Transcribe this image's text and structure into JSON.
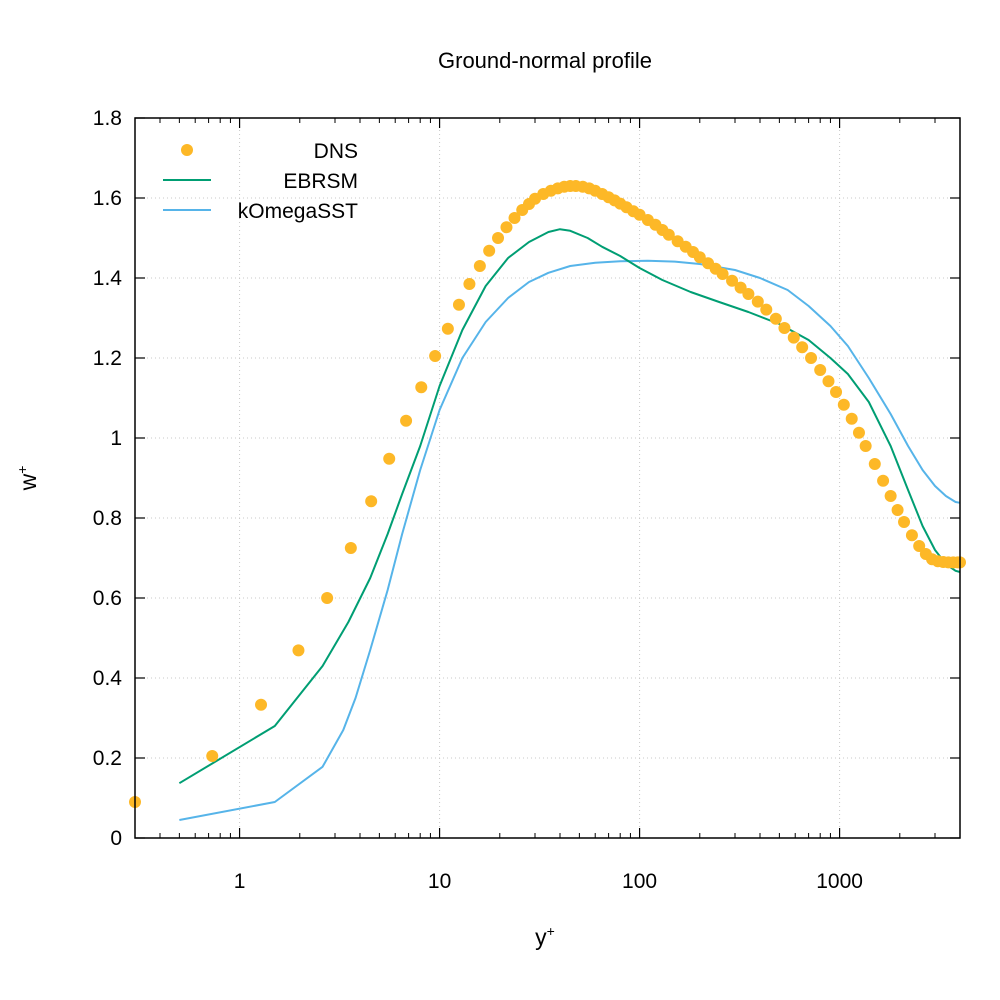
{
  "chart_data": {
    "type": "scatter",
    "title": "Ground-normal profile",
    "xlabel": "y",
    "xlabel_sup": "+",
    "ylabel": "w",
    "ylabel_sup": "+",
    "x_scale": "log",
    "xlim": [
      0.3,
      4000
    ],
    "ylim": [
      0,
      1.8
    ],
    "x_ticks": [
      1,
      10,
      100,
      1000
    ],
    "x_tick_labels": [
      "1",
      "10",
      "100",
      "1000"
    ],
    "y_ticks": [
      0,
      0.2,
      0.4,
      0.6,
      0.8,
      1,
      1.2,
      1.4,
      1.6,
      1.8
    ],
    "y_tick_labels": [
      "0",
      "0.2",
      "0.4",
      "0.6",
      "0.8",
      "1",
      "1.2",
      "1.4",
      "1.6",
      "1.8"
    ],
    "grid": true,
    "legend_position": "top-left",
    "series": [
      {
        "name": "DNS",
        "kind": "points",
        "color": "#FDB827",
        "x": [
          0.3,
          0.73,
          1.28,
          1.97,
          2.74,
          3.6,
          4.55,
          5.6,
          6.8,
          8.1,
          9.5,
          11,
          12.5,
          14.1,
          15.9,
          17.7,
          19.6,
          21.6,
          23.7,
          25.9,
          28,
          30,
          33,
          36,
          39,
          42,
          45,
          48,
          52,
          56,
          60,
          65,
          70,
          75,
          80,
          86,
          93,
          100,
          110,
          120,
          130,
          140,
          155,
          170,
          185,
          200,
          220,
          240,
          260,
          290,
          320,
          350,
          390,
          430,
          480,
          530,
          590,
          650,
          720,
          800,
          880,
          960,
          1050,
          1150,
          1250,
          1350,
          1500,
          1650,
          1800,
          1950,
          2100,
          2300,
          2500,
          2700,
          2900,
          3100,
          3300,
          3500,
          3700,
          3900,
          4000
        ],
        "y": [
          0.09,
          0.205,
          0.333,
          0.469,
          0.6,
          0.725,
          0.842,
          0.948,
          1.043,
          1.127,
          1.205,
          1.273,
          1.333,
          1.385,
          1.43,
          1.468,
          1.5,
          1.527,
          1.55,
          1.57,
          1.585,
          1.598,
          1.61,
          1.618,
          1.624,
          1.628,
          1.63,
          1.63,
          1.628,
          1.624,
          1.618,
          1.61,
          1.602,
          1.594,
          1.586,
          1.577,
          1.567,
          1.558,
          1.545,
          1.533,
          1.52,
          1.508,
          1.492,
          1.478,
          1.465,
          1.452,
          1.437,
          1.423,
          1.41,
          1.393,
          1.376,
          1.36,
          1.341,
          1.321,
          1.298,
          1.275,
          1.251,
          1.227,
          1.2,
          1.17,
          1.142,
          1.115,
          1.083,
          1.048,
          1.013,
          0.98,
          0.935,
          0.893,
          0.855,
          0.82,
          0.79,
          0.757,
          0.73,
          0.71,
          0.697,
          0.692,
          0.69,
          0.689,
          0.689,
          0.689,
          0.689
        ]
      },
      {
        "name": "EBRSM",
        "kind": "line",
        "color": "#009E73",
        "x": [
          0.5,
          1.5,
          2.6,
          3.5,
          4.5,
          5.5,
          6.5,
          8,
          10,
          13,
          17,
          22,
          28,
          35,
          40,
          45,
          55,
          65,
          80,
          100,
          130,
          180,
          250,
          350,
          500,
          700,
          900,
          1100,
          1400,
          1800,
          2200,
          2600,
          3000,
          3400,
          3800,
          4000
        ],
        "y": [
          0.137,
          0.28,
          0.43,
          0.54,
          0.65,
          0.76,
          0.86,
          0.98,
          1.13,
          1.27,
          1.38,
          1.45,
          1.49,
          1.515,
          1.522,
          1.518,
          1.5,
          1.478,
          1.455,
          1.425,
          1.395,
          1.365,
          1.34,
          1.315,
          1.285,
          1.245,
          1.2,
          1.16,
          1.09,
          0.98,
          0.87,
          0.78,
          0.72,
          0.685,
          0.668,
          0.665
        ]
      },
      {
        "name": "kOmegaSST",
        "kind": "line",
        "color": "#56B4E9",
        "x": [
          0.5,
          1.5,
          2.6,
          3.3,
          3.8,
          4.5,
          5.5,
          6.5,
          8,
          10,
          13,
          17,
          22,
          28,
          35,
          45,
          60,
          80,
          110,
          150,
          200,
          300,
          400,
          550,
          700,
          900,
          1100,
          1400,
          1800,
          2200,
          2600,
          3000,
          3400,
          3800,
          4000
        ],
        "y": [
          0.045,
          0.09,
          0.178,
          0.27,
          0.35,
          0.47,
          0.62,
          0.76,
          0.92,
          1.07,
          1.2,
          1.29,
          1.35,
          1.39,
          1.413,
          1.43,
          1.438,
          1.442,
          1.443,
          1.441,
          1.435,
          1.42,
          1.4,
          1.37,
          1.33,
          1.28,
          1.23,
          1.15,
          1.06,
          0.98,
          0.92,
          0.88,
          0.855,
          0.84,
          0.838
        ]
      }
    ]
  }
}
